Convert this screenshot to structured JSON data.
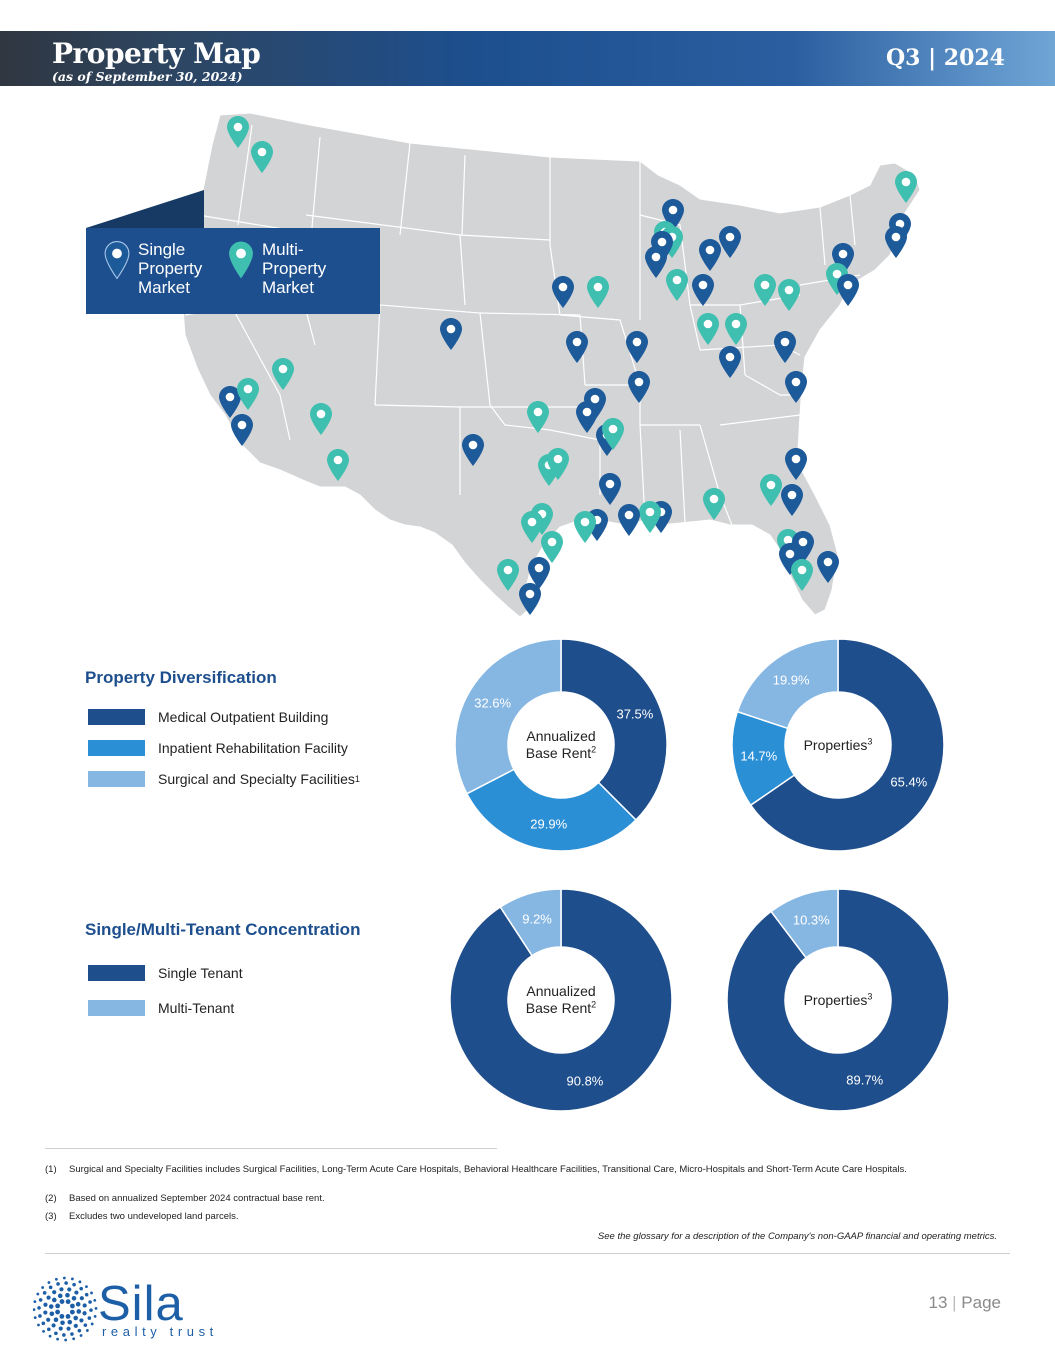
{
  "header": {
    "title": "Property Map",
    "subtitle": "(as of September 30, 2024)",
    "period": "Q3 | 2024"
  },
  "map_legend": {
    "single": "Single\nProperty\nMarket",
    "multi": "Multi-\nProperty\nMarket"
  },
  "colors": {
    "header_dark": "#2f3640",
    "header_blue": "#1d4f8e",
    "map_fill": "#d3d4d6",
    "single_pin": "#1d5a9a",
    "multi_pin": "#3fbfb0",
    "mob": "#1f4e8c",
    "irf": "#2b8fd6",
    "ssf": "#86b7e3",
    "single_tenant": "#1f4e8c",
    "multi_tenant": "#86b7e3"
  },
  "diversification": {
    "title": "Property Diversification",
    "legend": [
      "Medical Outpatient Building",
      "Inpatient Rehabilitation Facility",
      "Surgical and Specialty Facilities"
    ],
    "legend_sup": [
      "",
      "",
      "1"
    ]
  },
  "tenancy": {
    "title": "Single/Multi-Tenant Concentration",
    "legend": [
      "Single Tenant",
      "Multi-Tenant"
    ]
  },
  "chart_data": [
    {
      "type": "pie",
      "center_label": "Annualized\nBase Rent",
      "center_sup": "2",
      "categories": [
        "Medical Outpatient Building",
        "Inpatient Rehabilitation Facility",
        "Surgical and Specialty Facilities"
      ],
      "values": [
        37.5,
        29.9,
        32.6
      ],
      "labels": [
        "37.5%",
        "29.9%",
        "32.6%"
      ]
    },
    {
      "type": "pie",
      "center_label": "Properties",
      "center_sup": "3",
      "categories": [
        "Medical Outpatient Building",
        "Inpatient Rehabilitation Facility",
        "Surgical and Specialty Facilities"
      ],
      "values": [
        65.4,
        14.7,
        19.9
      ],
      "labels": [
        "65.4%",
        "14.7%",
        "19.9%"
      ]
    },
    {
      "type": "pie",
      "center_label": "Annualized\nBase Rent",
      "center_sup": "2",
      "categories": [
        "Single Tenant",
        "Multi-Tenant"
      ],
      "values": [
        90.8,
        9.2
      ],
      "labels": [
        "90.8%",
        "9.2%"
      ]
    },
    {
      "type": "pie",
      "center_label": "Properties",
      "center_sup": "3",
      "categories": [
        "Single Tenant",
        "Multi-Tenant"
      ],
      "values": [
        89.7,
        10.3
      ],
      "labels": [
        "89.7%",
        "10.3%"
      ]
    }
  ],
  "footnotes": [
    {
      "num": "(1)",
      "text": "Surgical and Specialty Facilities includes Surgical Facilities, Long-Term Acute Care Hospitals, Behavioral Healthcare Facilities, Transitional Care, Micro-Hospitals and Short-Term Acute Care Hospitals."
    },
    {
      "num": "(2)",
      "text": "Based on annualized September 2024 contractual base rent."
    },
    {
      "num": "(3)",
      "text": "Excludes two undeveloped land parcels."
    }
  ],
  "glossary_note": "See the glossary for a description of the Company's non-GAAP financial and operating metrics.",
  "logo": {
    "name": "Sila",
    "tagline": "realty trust"
  },
  "page": {
    "number": "13",
    "label": "Page",
    "separator": "|"
  }
}
